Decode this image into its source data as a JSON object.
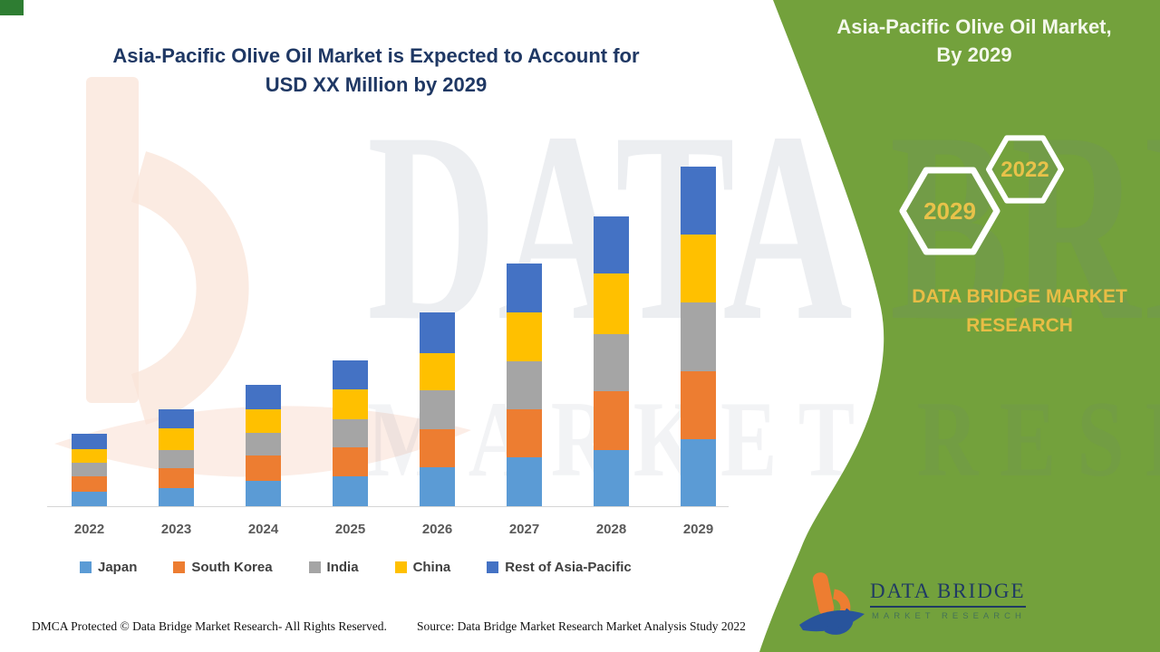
{
  "header": {
    "title_line1": "Asia-Pacific Olive Oil Market is Expected to Account for",
    "title_line2": "USD XX Million by 2029",
    "title_color": "#1F3864"
  },
  "side_panel": {
    "panel_color": "#73A13C",
    "title_line1": "Asia-Pacific Olive Oil Market,",
    "title_line2": "By 2029",
    "hexagons": [
      {
        "label": "2029"
      },
      {
        "label": "2022"
      }
    ],
    "brand_line1": "DATA BRIDGE MARKET",
    "brand_line2": "RESEARCH",
    "accent_text_color": "#E8BD45"
  },
  "watermark": {
    "line1": "DATA BRIDGE",
    "line2": "MARKET RESEARCH"
  },
  "logo": {
    "line1": "DATA BRIDGE",
    "line2": "MARKET RESEARCH"
  },
  "footer": {
    "left": "DMCA Protected © Data Bridge Market Research- All Rights Reserved.",
    "source": "Source: Data Bridge Market Research Market Analysis Study 2022"
  },
  "chart_data": {
    "type": "bar",
    "stacked": true,
    "title": "Asia-Pacific Olive Oil Market is Expected to Account for USD XX Million by 2029",
    "xlabel": "",
    "ylabel": "",
    "units": "relative units (actual values masked as USD XX Million; no value axis shown)",
    "grid": false,
    "value_axis_visible": false,
    "legend_position": "bottom",
    "categories": [
      "2022",
      "2023",
      "2024",
      "2025",
      "2026",
      "2027",
      "2028",
      "2029"
    ],
    "series": [
      {
        "name": "Japan",
        "color": "#5B9BD5",
        "values": [
          16,
          20,
          28,
          33,
          43,
          54,
          62,
          74
        ]
      },
      {
        "name": "South Korea",
        "color": "#ED7D31",
        "values": [
          17,
          22,
          28,
          32,
          42,
          53,
          65,
          75
        ]
      },
      {
        "name": "India",
        "color": "#A5A5A5",
        "values": [
          15,
          20,
          25,
          31,
          43,
          53,
          63,
          76
        ]
      },
      {
        "name": "China",
        "color": "#FFC000",
        "values": [
          15,
          24,
          26,
          33,
          41,
          54,
          67,
          75
        ]
      },
      {
        "name": "Rest of Asia-Pacific",
        "color": "#4472C4",
        "values": [
          17,
          21,
          27,
          32,
          45,
          54,
          63,
          75
        ]
      }
    ],
    "totals": [
      80,
      107,
      134,
      161,
      214,
      268,
      320,
      375
    ]
  }
}
